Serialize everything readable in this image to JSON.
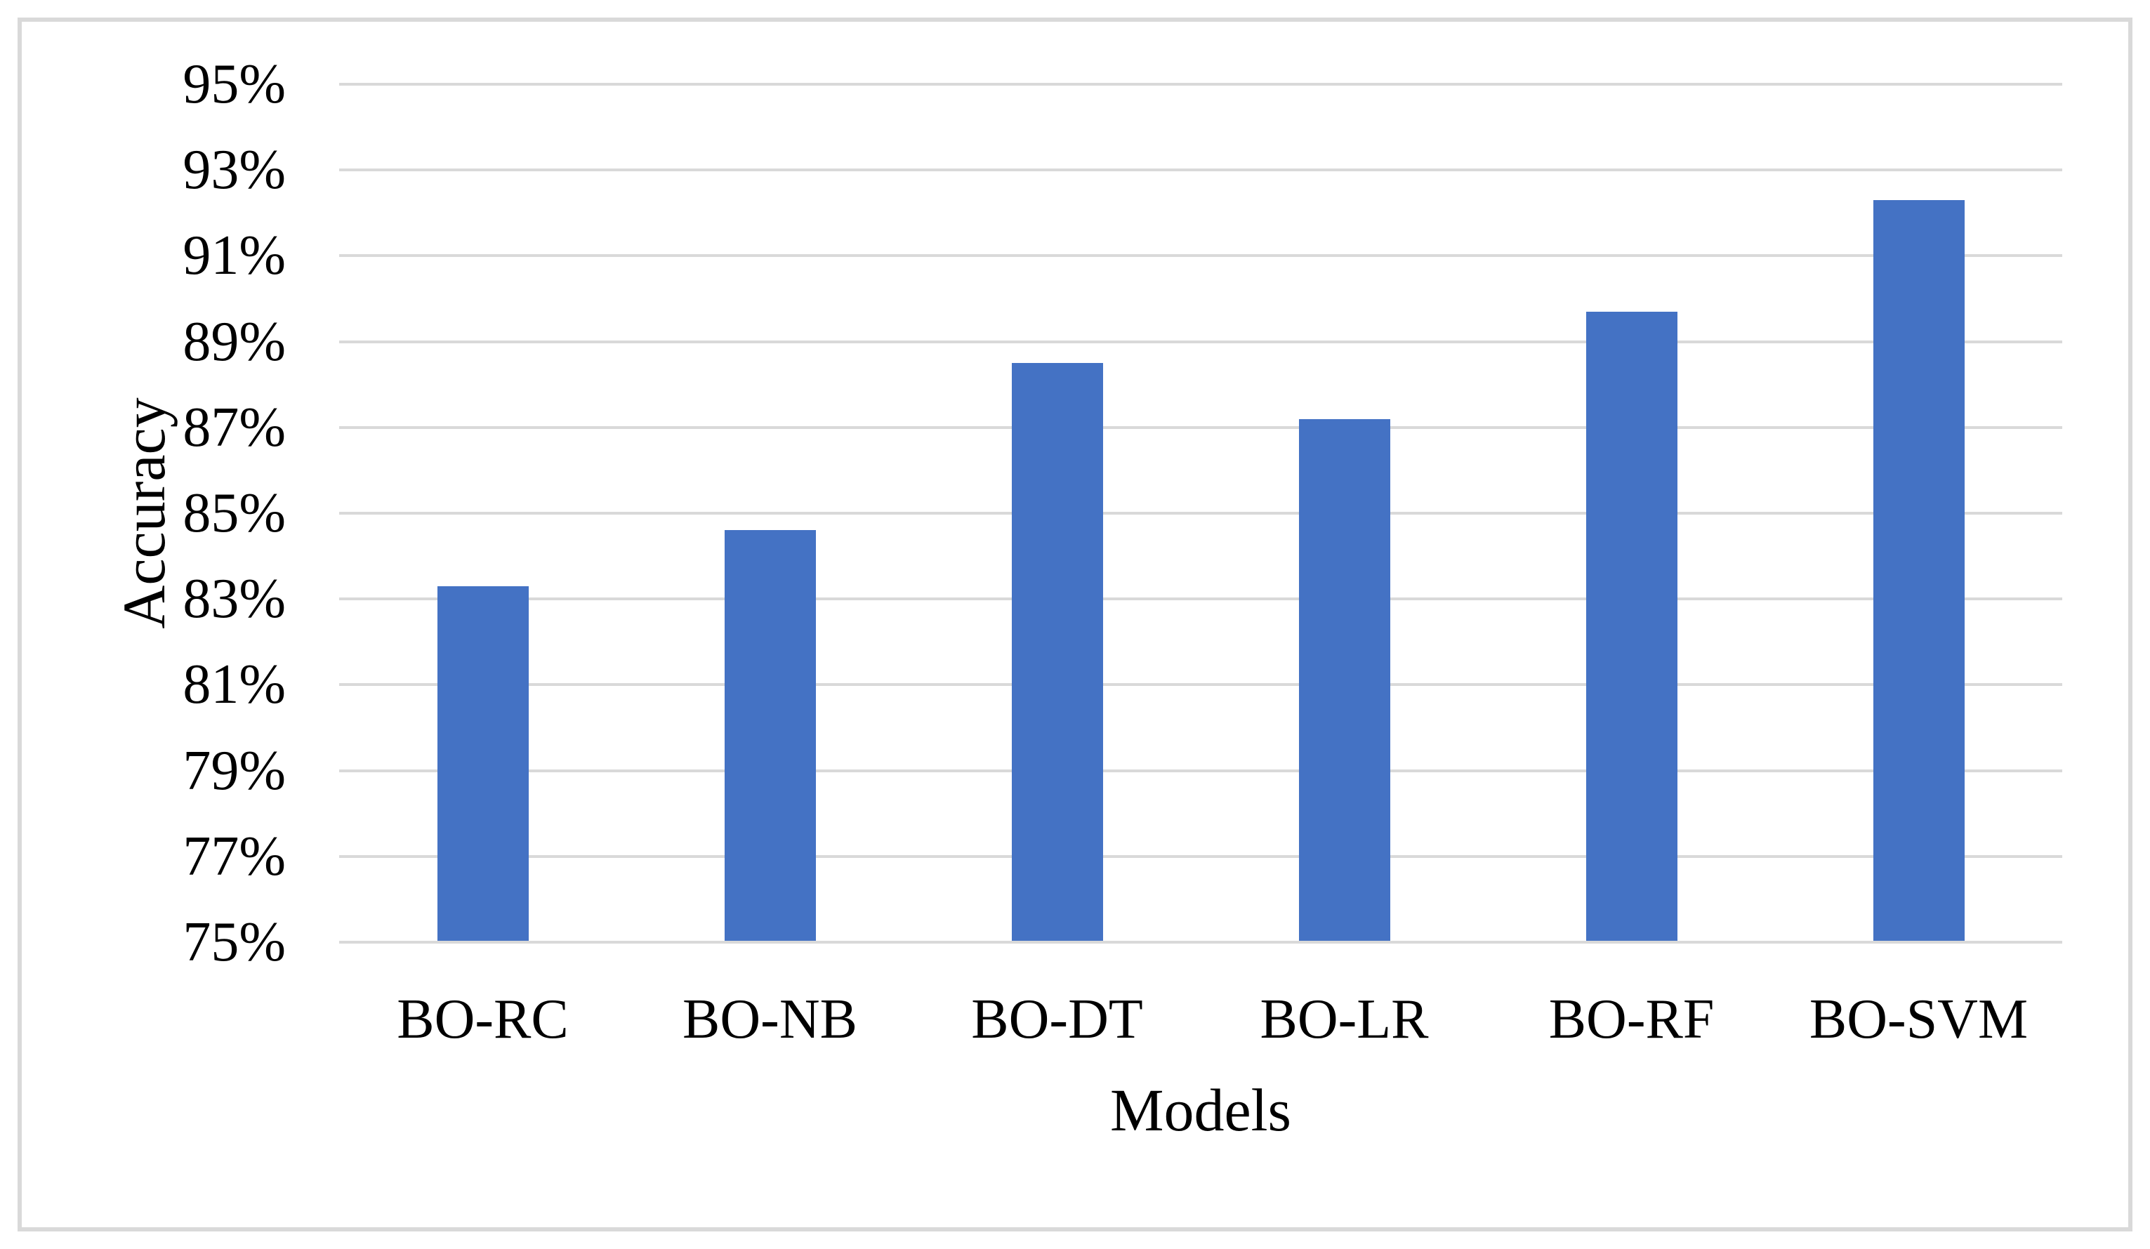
{
  "figure": {
    "background_color": "#FFFFFF",
    "text_color": "#000000",
    "border_color": "#D9D9D9",
    "y_axis_title": "Accuracy",
    "x_axis_title": "Models"
  },
  "chart_data": {
    "type": "bar",
    "title": "",
    "xlabel": "Models",
    "ylabel": "Accuracy",
    "categories": [
      "BO-RC",
      "BO-NB",
      "BO-DT",
      "BO-LR",
      "BO-RF",
      "BO-SVM"
    ],
    "values": [
      83.3,
      84.6,
      88.5,
      87.2,
      89.7,
      92.3
    ],
    "ylim": [
      75,
      95
    ],
    "ytick_step": 2,
    "ytick_labels": [
      "75%",
      "77%",
      "79%",
      "81%",
      "83%",
      "85%",
      "87%",
      "89%",
      "91%",
      "93%",
      "95%"
    ],
    "grid": "horizontal",
    "legend": "none",
    "bar_color": "#4472C4",
    "gridline_color": "#D9D9D9",
    "axis_line_color": "#D9D9D9"
  }
}
